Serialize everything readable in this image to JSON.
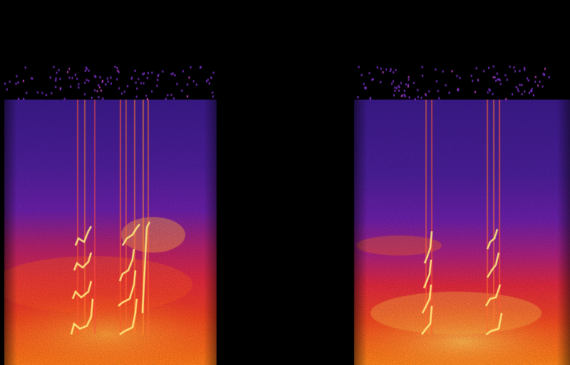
{
  "image": {
    "kind": "spectrogram",
    "panels": 2,
    "background": "#000000",
    "colormap": [
      "#000000",
      "#1a0a3a",
      "#3a1a8a",
      "#6a1fa8",
      "#a02090",
      "#d8206a",
      "#f03a3a",
      "#ff6a1a",
      "#ffb040",
      "#fff080"
    ]
  }
}
